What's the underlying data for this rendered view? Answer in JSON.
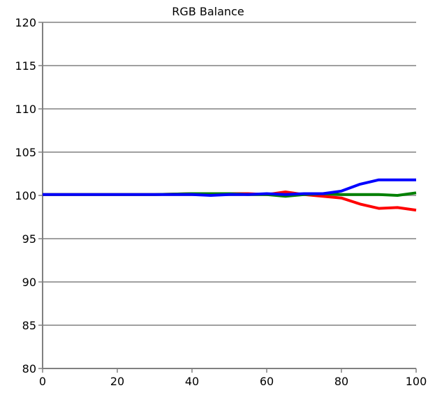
{
  "chart_data": {
    "type": "line",
    "title": "RGB Balance",
    "xlabel": "",
    "ylabel": "",
    "xlim": [
      0,
      100
    ],
    "ylim": [
      80,
      120
    ],
    "x_ticks": [
      0,
      20,
      40,
      60,
      80,
      100
    ],
    "y_ticks": [
      80,
      85,
      90,
      95,
      100,
      105,
      110,
      115,
      120
    ],
    "grid": "horizontal",
    "legend": "none",
    "series": [
      {
        "color": "#ff0000",
        "x": [
          0,
          10,
          20,
          30,
          40,
          50,
          55,
          60,
          65,
          70,
          75,
          80,
          85,
          90,
          95,
          100
        ],
        "y": [
          100.1,
          100.1,
          100.1,
          100.1,
          100.2,
          100.2,
          100.2,
          100.1,
          100.4,
          100.1,
          99.9,
          99.7,
          99.0,
          98.5,
          98.6,
          98.3
        ]
      },
      {
        "color": "#008000",
        "x": [
          0,
          10,
          20,
          30,
          40,
          50,
          55,
          60,
          65,
          70,
          75,
          80,
          85,
          90,
          95,
          100
        ],
        "y": [
          100.1,
          100.1,
          100.1,
          100.1,
          100.2,
          100.2,
          100.1,
          100.1,
          99.9,
          100.1,
          100.2,
          100.1,
          100.1,
          100.1,
          100.0,
          100.3
        ]
      },
      {
        "color": "#0000ff",
        "x": [
          0,
          10,
          20,
          30,
          40,
          45,
          50,
          55,
          60,
          65,
          70,
          75,
          80,
          85,
          90,
          95,
          100
        ],
        "y": [
          100.1,
          100.1,
          100.1,
          100.1,
          100.1,
          100.0,
          100.1,
          100.1,
          100.2,
          100.1,
          100.2,
          100.2,
          100.5,
          101.3,
          101.8,
          101.8,
          101.8
        ]
      }
    ]
  }
}
